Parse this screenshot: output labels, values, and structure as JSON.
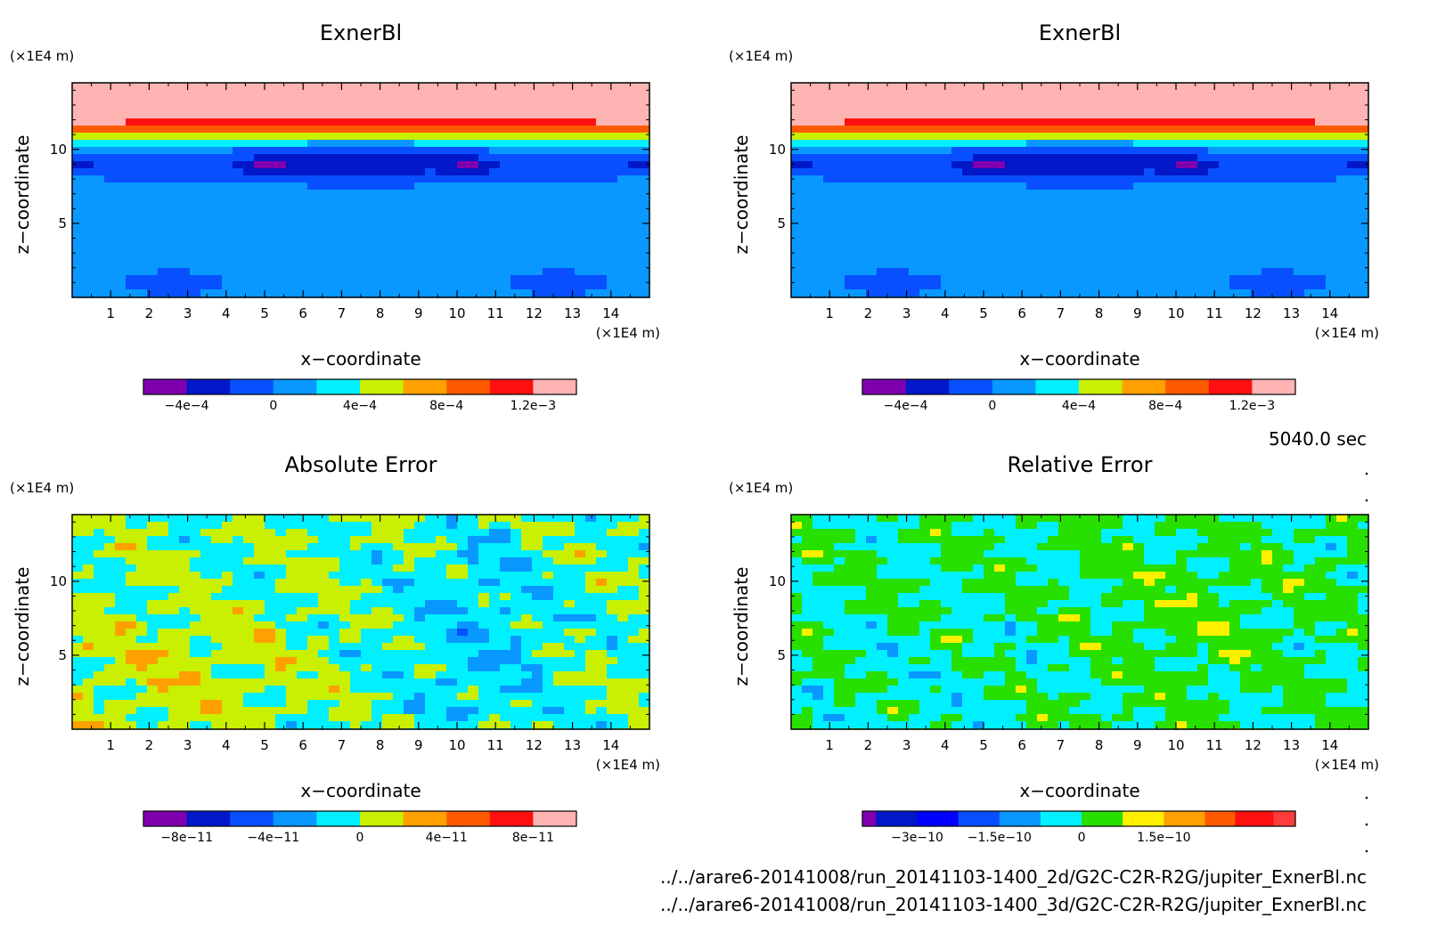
{
  "timestamp": "5040.0 sec",
  "files": [
    "../../arare6-20141008/run_20141103-1400_2d/G2C-C2R-R2G/jupiter_ExnerBl.nc",
    "../../arare6-20141008/run_20141103-1400_3d/G2C-C2R-R2G/jupiter_ExnerBl.nc"
  ],
  "chart_data": [
    {
      "id": "p1",
      "type": "heatmap",
      "title": "ExnerBl",
      "xlabel": "x−coordinate",
      "ylabel": "z−coordinate",
      "x_unit": "(×1E4 m)",
      "y_unit": "(×1E4 m)",
      "xlim": [
        0,
        15
      ],
      "ylim": [
        0,
        14.5
      ],
      "x_ticks": [
        1,
        2,
        3,
        4,
        5,
        6,
        7,
        8,
        9,
        10,
        11,
        12,
        13,
        14
      ],
      "y_ticks": [
        5,
        10
      ],
      "levels": [
        -0.0006,
        -0.0004,
        -0.0002,
        0,
        0.0002,
        0.0004,
        0.0006,
        0.0008,
        0.001,
        0.0012,
        0.0014
      ],
      "colors": [
        "#8000b0",
        "#0018c8",
        "#0850ff",
        "#0898ff",
        "#00f0ff",
        "#c8f000",
        "#ffa000",
        "#ff5a00",
        "#ff1010",
        "#ffb4b4"
      ],
      "colorbar_labels": [
        {
          "value": -0.0004,
          "label": "−4e−4"
        },
        {
          "value": 0,
          "label": "0"
        },
        {
          "value": 0.0004,
          "label": "4e−4"
        },
        {
          "value": 0.0008,
          "label": "8e−4"
        },
        {
          "value": 0.0012,
          "label": "1.2e−3"
        }
      ],
      "field": "exner"
    },
    {
      "id": "p2",
      "type": "heatmap",
      "title": "ExnerBl",
      "xlabel": "x−coordinate",
      "ylabel": "z−coordinate",
      "x_unit": "(×1E4 m)",
      "y_unit": "(×1E4 m)",
      "xlim": [
        0,
        15
      ],
      "ylim": [
        0,
        14.5
      ],
      "x_ticks": [
        1,
        2,
        3,
        4,
        5,
        6,
        7,
        8,
        9,
        10,
        11,
        12,
        13,
        14
      ],
      "y_ticks": [
        5,
        10
      ],
      "levels": [
        -0.0006,
        -0.0004,
        -0.0002,
        0,
        0.0002,
        0.0004,
        0.0006,
        0.0008,
        0.001,
        0.0012,
        0.0014
      ],
      "colors": [
        "#8000b0",
        "#0018c8",
        "#0850ff",
        "#0898ff",
        "#00f0ff",
        "#c8f000",
        "#ffa000",
        "#ff5a00",
        "#ff1010",
        "#ffb4b4"
      ],
      "colorbar_labels": [
        {
          "value": -0.0004,
          "label": "−4e−4"
        },
        {
          "value": 0,
          "label": "0"
        },
        {
          "value": 0.0004,
          "label": "4e−4"
        },
        {
          "value": 0.0008,
          "label": "8e−4"
        },
        {
          "value": 0.0012,
          "label": "1.2e−3"
        }
      ],
      "field": "exner"
    },
    {
      "id": "p3",
      "type": "heatmap",
      "title": "Absolute Error",
      "xlabel": "x−coordinate",
      "ylabel": "z−coordinate",
      "x_unit": "(×1E4 m)",
      "y_unit": "(×1E4 m)",
      "xlim": [
        0,
        15
      ],
      "ylim": [
        0,
        14.5
      ],
      "x_ticks": [
        1,
        2,
        3,
        4,
        5,
        6,
        7,
        8,
        9,
        10,
        11,
        12,
        13,
        14
      ],
      "y_ticks": [
        5,
        10
      ],
      "levels": [
        -1e-10,
        -8e-11,
        -6e-11,
        -4e-11,
        -2e-11,
        0,
        2e-11,
        4e-11,
        6e-11,
        8e-11,
        1e-10
      ],
      "colors": [
        "#8000b0",
        "#0018c8",
        "#0850ff",
        "#0898ff",
        "#00f0ff",
        "#c8f000",
        "#ffa000",
        "#ff5a00",
        "#ff1010",
        "#ffb4b4"
      ],
      "colorbar_labels": [
        {
          "value": -8e-11,
          "label": "−8e−11"
        },
        {
          "value": -4e-11,
          "label": "−4e−11"
        },
        {
          "value": 0,
          "label": "0"
        },
        {
          "value": 4e-11,
          "label": "4e−11"
        },
        {
          "value": 8e-11,
          "label": "8e−11"
        }
      ],
      "field": "abs"
    },
    {
      "id": "p4",
      "type": "heatmap",
      "title": "Relative Error",
      "xlabel": "x−coordinate",
      "ylabel": "z−coordinate",
      "x_unit": "(×1E4 m)",
      "y_unit": "(×1E4 m)",
      "xlim": [
        0,
        15
      ],
      "ylim": [
        0,
        14.5
      ],
      "x_ticks": [
        1,
        2,
        3,
        4,
        5,
        6,
        7,
        8,
        9,
        10,
        11,
        12,
        13,
        14
      ],
      "y_ticks": [
        5,
        10
      ],
      "levels": [
        -4e-10,
        -3.75e-10,
        -3e-10,
        -2.25e-10,
        -1.5e-10,
        -7.5e-11,
        0,
        7.5e-11,
        1.5e-10,
        2.25e-10,
        2.8e-10,
        3.5e-10,
        3.9e-10
      ],
      "colors": [
        "#8000b0",
        "#0018c8",
        "#0000ff",
        "#0850ff",
        "#0898ff",
        "#00f0ff",
        "#28e000",
        "#fff000",
        "#ffa000",
        "#ff5a00",
        "#ff1010",
        "#ff3c3c",
        "#ffb4b4"
      ],
      "colorbar_labels": [
        {
          "value": -3e-10,
          "label": "−3e−10"
        },
        {
          "value": -1.5e-10,
          "label": "−1.5e−10"
        },
        {
          "value": 0,
          "label": "0"
        },
        {
          "value": 1.5e-10,
          "label": "1.5e−10"
        }
      ],
      "field": "rel"
    }
  ]
}
